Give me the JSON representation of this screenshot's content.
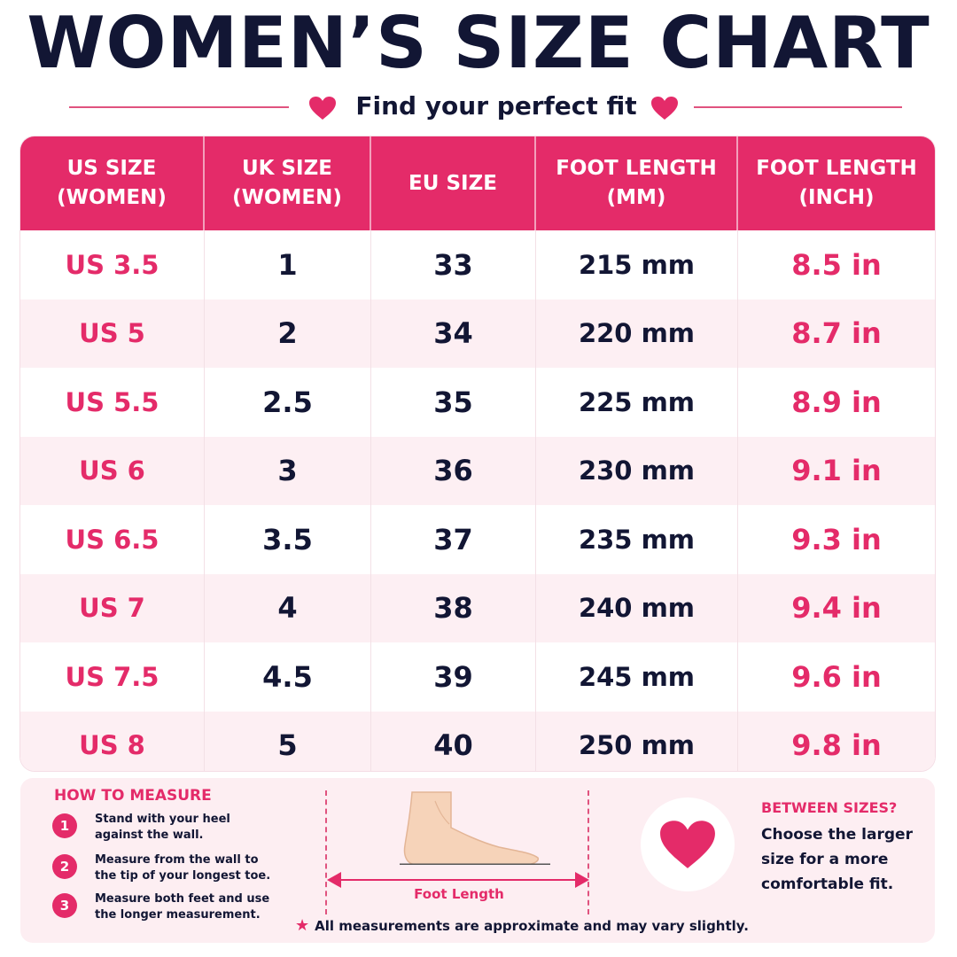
{
  "title": "WOMEN’S SIZE CHART",
  "subtitle": "Find your perfect fit",
  "colors": {
    "accent": "#e42b69",
    "navy": "#121634",
    "row_tint": "#fdeff3"
  },
  "table": {
    "headers": [
      "US SIZE\n(WOMEN)",
      "UK SIZE\n(WOMEN)",
      "EU SIZE",
      "FOOT LENGTH\n(MM)",
      "FOOT LENGTH\n(INCH)"
    ],
    "rows": [
      [
        "US 3.5",
        "1",
        "33",
        "215 mm",
        "8.5 in"
      ],
      [
        "US 5",
        "2",
        "34",
        "220 mm",
        "8.7 in"
      ],
      [
        "US 5.5",
        "2.5",
        "35",
        "225 mm",
        "8.9 in"
      ],
      [
        "US 6",
        "3",
        "36",
        "230 mm",
        "9.1 in"
      ],
      [
        "US 6.5",
        "3.5",
        "37",
        "235 mm",
        "9.3 in"
      ],
      [
        "US 7",
        "4",
        "38",
        "240 mm",
        "9.4 in"
      ],
      [
        "US 7.5",
        "4.5",
        "39",
        "245 mm",
        "9.6 in"
      ],
      [
        "US 8",
        "5",
        "40",
        "250 mm",
        "9.8 in"
      ]
    ]
  },
  "how_to_measure": {
    "title": "HOW TO MEASURE",
    "steps": [
      {
        "num": "1",
        "text": "Stand with your heel against the wall."
      },
      {
        "num": "2",
        "text": "Measure from the wall to the tip of your longest toe."
      },
      {
        "num": "3",
        "text": "Measure both feet and use the longer measurement."
      }
    ]
  },
  "foot_label": "Foot Length",
  "note": "All measurements are approximate and may vary slightly.",
  "between_sizes": {
    "title": "BETWEEN SIZES?",
    "text": "Choose the larger size for a more comfortable fit."
  },
  "icons": {
    "heart": "heart-icon",
    "star": "star-icon",
    "foot": "foot-illustration"
  }
}
